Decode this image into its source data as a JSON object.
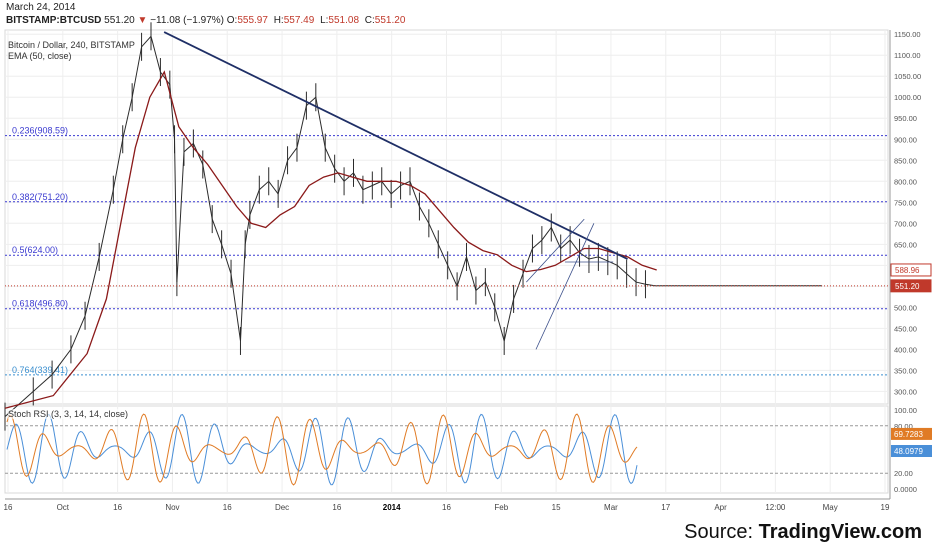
{
  "header": {
    "date": "March 24, 2014",
    "symbol": "BITSTAMP:BTCUSD",
    "last": "551.20",
    "change_arrow": "▼",
    "change": "−11.08 (−1.97%)",
    "open_label": "O:",
    "open": "555.97",
    "high_label": "H:",
    "high": "557.49",
    "low_label": "L:",
    "low": "551.08",
    "close_label": "C:",
    "close": "551.20"
  },
  "chart_title": "Bitcoin / Dollar, 240, BITSTAMP",
  "ema_label": "EMA (50, close)",
  "stoch_label": "Stoch RSI (3, 3, 14, 14, close)",
  "source": {
    "prefix": "Source: ",
    "brand": "TradingView.com"
  },
  "colors": {
    "price": "#2b2b2b",
    "ema": "#8b1a1a",
    "trendline": "#1f2f66",
    "fib": "#3a3ad0",
    "fib_0764": "#3a8fd0",
    "current_price": "#c0392b",
    "stoch_k": "#4a8fd8",
    "stoch_d": "#e07b25"
  },
  "chart_data": {
    "type": "line",
    "title": "Bitcoin / Dollar, 240, BITSTAMP",
    "x_tick_labels": [
      "16",
      "Oct",
      "16",
      "Nov",
      "16",
      "Dec",
      "16",
      "2014",
      "16",
      "Feb",
      "15",
      "Mar",
      "17",
      "Apr",
      "12:00",
      "May",
      "19"
    ],
    "y_tick_labels": [
      "1150.00",
      "1100.00",
      "1050.00",
      "1000.00",
      "950.00",
      "900.00",
      "850.00",
      "800.00",
      "750.00",
      "700.00",
      "650.00",
      "600.00",
      "550.00",
      "500.00",
      "450.00",
      "400.00",
      "350.00",
      "300.00"
    ],
    "ylim": [
      270,
      1160
    ],
    "fib_levels": [
      {
        "label": "0.236(908.59)",
        "value": 908.59
      },
      {
        "label": "0.382(751.20)",
        "value": 751.2
      },
      {
        "label": "0.5(624.00)",
        "value": 624.0
      },
      {
        "label": "0.618(496.80)",
        "value": 496.8
      },
      {
        "label": "0.764(339.41)",
        "value": 339.41
      }
    ],
    "price_markers": [
      {
        "label": "588.96",
        "value": 588.96,
        "series": "EMA (50, close)"
      },
      {
        "label": "551.20",
        "value": 551.2,
        "series": "Price"
      }
    ],
    "series": [
      {
        "name": "Price",
        "x": [
          0,
          6,
          10,
          14,
          17,
          20,
          23,
          25,
          27,
          29,
          31,
          33,
          35,
          36,
          36.5,
          38,
          40,
          42,
          44,
          46,
          48,
          50,
          51,
          52,
          54,
          56,
          58,
          60,
          62,
          64,
          66,
          68,
          70,
          72,
          74,
          76,
          78,
          80,
          82,
          84,
          86,
          88,
          90,
          92,
          94,
          96,
          98,
          100,
          102,
          104,
          106,
          108,
          110,
          112,
          114,
          116,
          118,
          120,
          122,
          124,
          126,
          128,
          130,
          132,
          134,
          136,
          138,
          140,
          142,
          144,
          146,
          148,
          150,
          152,
          154,
          156,
          158,
          160,
          162,
          164,
          166,
          168,
          170,
          172,
          173.5
        ],
        "y": [
          240,
          300,
          340,
          400,
          480,
          620,
          780,
          900,
          1000,
          1120,
          1145,
          1060,
          1030,
          900,
          560,
          870,
          890,
          840,
          710,
          650,
          580,
          420,
          650,
          720,
          780,
          800,
          770,
          850,
          880,
          980,
          1000,
          880,
          830,
          800,
          820,
          780,
          790,
          800,
          770,
          790,
          800,
          740,
          700,
          650,
          600,
          550,
          620,
          540,
          560,
          500,
          420,
          520,
          580,
          640,
          660,
          690,
          640,
          660,
          630,
          615,
          620,
          610,
          600,
          580,
          560,
          555,
          551.2,
          551.2,
          551.2,
          551.2,
          551.2,
          551.2,
          551.2,
          551.2,
          551.2,
          551.2,
          551.2,
          551.2,
          551.2,
          551.2,
          551.2,
          551.2,
          551.2,
          551.2,
          551.2
        ]
      },
      {
        "name": "EMA (50, close)",
        "x": [
          0,
          10,
          17,
          21,
          24,
          27,
          30,
          33,
          36,
          39,
          42,
          45,
          48,
          51,
          54,
          57,
          60,
          63,
          66,
          69,
          72,
          75,
          78,
          81,
          84,
          87,
          90,
          93,
          96,
          99,
          102,
          105,
          108,
          111,
          114,
          117,
          120,
          123,
          126,
          129,
          132,
          135
        ],
        "y": [
          260,
          290,
          390,
          520,
          700,
          880,
          1000,
          1060,
          930,
          880,
          840,
          790,
          740,
          700,
          690,
          720,
          740,
          790,
          810,
          820,
          810,
          800,
          800,
          800,
          790,
          770,
          730,
          690,
          655,
          635,
          625,
          600,
          585,
          590,
          600,
          620,
          640,
          640,
          630,
          620,
          600,
          588.96
        ]
      }
    ],
    "trendlines": [
      {
        "from": [
          35,
          1155
        ],
        "to": [
          131,
          615
        ]
      },
      {
        "from": [
          108,
          560
        ],
        "to": [
          120,
          710
        ]
      },
      {
        "from": [
          110,
          400
        ],
        "to": [
          122,
          700
        ]
      },
      {
        "from": [
          116,
          608
        ],
        "to": [
          126,
          608
        ]
      }
    ],
    "stoch_rsi": {
      "ylim": [
        0,
        100
      ],
      "y_tick_labels": [
        "100.00",
        "80.00",
        "20.00",
        "0.0000"
      ],
      "guides": [
        80,
        20
      ],
      "k_last": "69.7283",
      "d_last": "48.0979"
    }
  }
}
